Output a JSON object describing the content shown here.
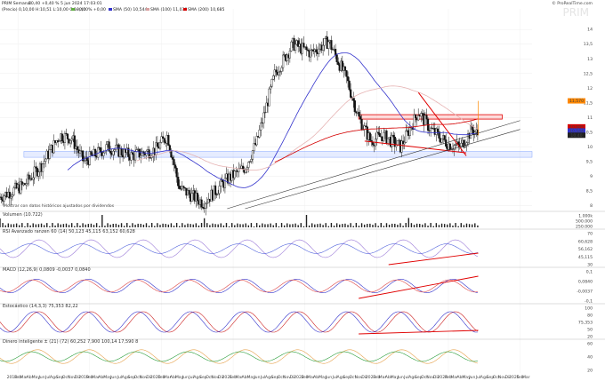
{
  "header": {
    "title": "PRIM Semanal",
    "quote": "10,40 +0,40 % 5 jun 2024 17:03:01",
    "ohlc": "(Precio) 0,10,00 H:10,51 L:10,00 C:10,40",
    "watermark": "PRIM",
    "brand": "© ProRealTime.com",
    "legend": [
      {
        "label": "+0,00% +0,00",
        "color": "#5fae3f"
      },
      {
        "label": "SMA (50) 10,544",
        "color": "#3333cc"
      },
      {
        "label": "SMA (100) 11,030",
        "color": "#d9a0a0"
      },
      {
        "label": "SMA (200) 10,685",
        "color": "#d40000"
      }
    ]
  },
  "price_axis": {
    "ticks": [
      "14",
      "13,5",
      "13",
      "12,5",
      "12",
      "11,5",
      "11",
      "10,5",
      "10",
      "9,5",
      "9",
      "8,5",
      "8"
    ],
    "badges": [
      {
        "label": "11,570",
        "color": "#ff8800"
      },
      {
        "label": "10,685",
        "color": "#d40000"
      },
      {
        "label": "10,544",
        "color": "#3333cc"
      },
      {
        "label": "10,40",
        "color": "#222222"
      }
    ],
    "event_note": "Mostrar con datos históricos ajustados por dividendos"
  },
  "volume_panel": {
    "label": "Volumen (10.722)",
    "ticks": [
      "1.000k",
      "500.000",
      "250.000"
    ]
  },
  "rsi_panel": {
    "label": "RSI Avanzado ranzen 60 (14) 50,123 45,115 63,152 60,628",
    "ticks": [
      "70",
      "60,628",
      "56,162",
      "45,115",
      "30"
    ]
  },
  "macd_panel": {
    "label": "MACD (12,26,9) 0,0809 -0,0037 0,0840",
    "ticks": [
      "0,1",
      "0,0840",
      "-0,0037",
      "-0,1"
    ]
  },
  "stoch_panel": {
    "label": "Estocástico (14,3,3) 75,353 82,22",
    "ticks": [
      "100",
      "80",
      "75,353",
      "50",
      "20"
    ]
  },
  "smart_panel": {
    "label": "Dinero inteligente ± (21) (72) 60,252 7,900 100,14 17,590 8",
    "ticks": [
      "60",
      "40",
      "20"
    ]
  },
  "x_axis": {
    "labels": [
      "2018",
      "Feb",
      "Mar",
      "Abr",
      "May",
      "Jun",
      "Jul",
      "Ago",
      "Sep",
      "Oct",
      "Nov",
      "Dic",
      "2019",
      "Feb",
      "Mar",
      "Abr",
      "May",
      "Jun",
      "Jul",
      "Ago",
      "Sep",
      "Oct",
      "Nov",
      "Dic",
      "2020",
      "Feb",
      "Mar",
      "Abr",
      "May",
      "Jun",
      "Jul",
      "Ago",
      "Sep",
      "Oct",
      "Nov",
      "Dic",
      "2021",
      "Feb",
      "Mar",
      "Abr",
      "May",
      "Jun",
      "Jul",
      "Ago",
      "Sep",
      "Oct",
      "Nov",
      "Dic",
      "2022",
      "Feb",
      "Mar",
      "Abr",
      "May",
      "Jun",
      "Jul",
      "Ago",
      "Sep",
      "Oct",
      "Nov",
      "Dic",
      "2023",
      "Feb",
      "Mar",
      "Abr",
      "May",
      "Jun",
      "Jul",
      "Ago",
      "Sep",
      "Oct",
      "Nov",
      "Dic",
      "2024",
      "Feb",
      "Mar",
      "Abr",
      "May",
      "Jun",
      "Jul",
      "Ago",
      "Sep",
      "Oct",
      "Nov",
      "Dic",
      "2025",
      "Feb",
      "Mar"
    ]
  },
  "chart_data": {
    "type": "candlestick",
    "symbol": "PRIM",
    "interval": "weekly",
    "ylim": [
      7.9,
      14.7
    ],
    "x_range": [
      "2017-10",
      "2025-03"
    ],
    "price_path": [
      [
        "2017-10",
        8.3
      ],
      [
        "2018-02",
        8.7
      ],
      [
        "2018-05",
        9.4
      ],
      [
        "2018-08",
        10.4
      ],
      [
        "2018-10",
        10.3
      ],
      [
        "2018-12",
        9.5
      ],
      [
        "2019-04",
        10.0
      ],
      [
        "2019-08",
        9.7
      ],
      [
        "2019-12",
        9.9
      ],
      [
        "2020-02",
        10.4
      ],
      [
        "2020-04",
        8.6
      ],
      [
        "2020-08",
        8.1
      ],
      [
        "2020-12",
        8.9
      ],
      [
        "2021-03",
        9.3
      ],
      [
        "2021-05",
        10.2
      ],
      [
        "2021-08",
        12.5
      ],
      [
        "2021-11",
        13.5
      ],
      [
        "2022-02",
        13.2
      ],
      [
        "2022-05",
        13.6
      ],
      [
        "2022-08",
        12.3
      ],
      [
        "2022-10",
        11.0
      ],
      [
        "2022-12",
        10.2
      ],
      [
        "2023-02",
        10.4
      ],
      [
        "2023-05",
        10.0
      ],
      [
        "2023-08",
        11.2
      ],
      [
        "2023-10",
        10.6
      ],
      [
        "2024-01",
        10.1
      ],
      [
        "2024-03",
        10.0
      ],
      [
        "2024-05",
        10.6
      ],
      [
        "2024-06",
        10.4
      ]
    ],
    "levels": {
      "resistance_zone": [
        10.95,
        11.1
      ],
      "support_zone": [
        9.65,
        9.85
      ],
      "last": 10.4,
      "sma50": 10.544,
      "sma100": 11.03,
      "sma200": 10.685,
      "target": 11.57
    },
    "trendlines": [
      {
        "name": "downtrend",
        "from": [
          "2023-08",
          11.85
        ],
        "to": [
          "2024-04",
          9.7
        ],
        "color": "#e00000"
      },
      {
        "name": "triangle-base",
        "from": [
          "2022-11",
          10.2
        ],
        "to": [
          "2024-04",
          9.8
        ],
        "color": "#e00000"
      },
      {
        "name": "channel-upper",
        "from": [
          "2020-12",
          7.9
        ],
        "to": [
          "2025-01",
          10.9
        ],
        "color": "#333333"
      },
      {
        "name": "channel-lower",
        "from": [
          "2021-03",
          7.9
        ],
        "to": [
          "2025-01",
          10.6
        ],
        "color": "#333333"
      }
    ],
    "volume_max": 1000000,
    "rsi_last": 60.628,
    "macd_last": 0.084,
    "stoch_last": 75.353
  }
}
